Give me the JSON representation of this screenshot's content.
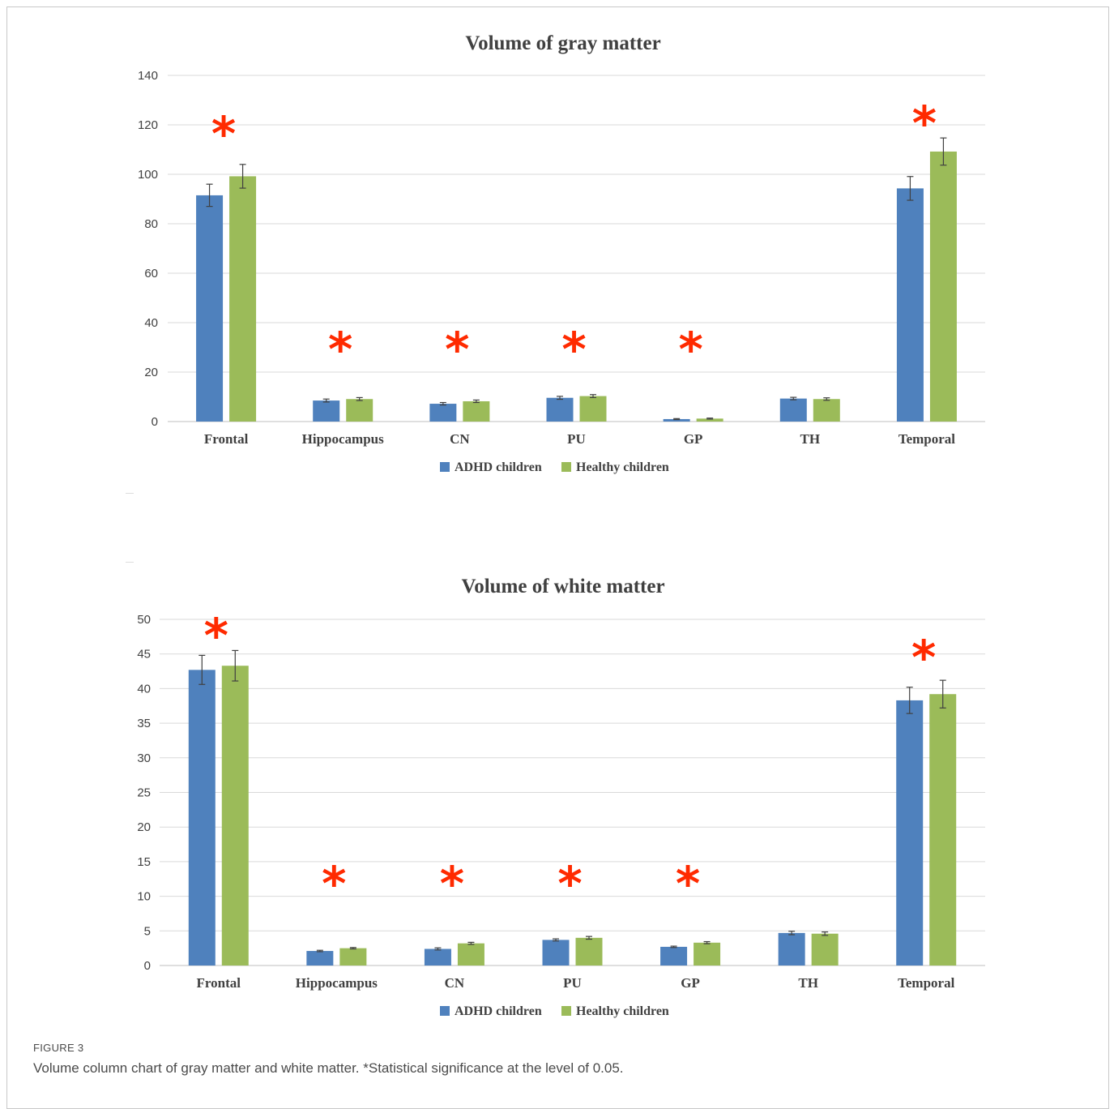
{
  "figure": {
    "label": "FIGURE 3",
    "caption": "Volume column chart of gray matter and white matter. *Statistical significance at the level of 0.05."
  },
  "colors": {
    "adhd": "#4f81bd",
    "healthy": "#9bbb59",
    "star": "#ff2a00",
    "grid": "#d9d9d9",
    "text": "#404040"
  },
  "chart_data": [
    {
      "type": "bar",
      "title": "Volume of gray matter",
      "xlabel": "",
      "ylabel": "",
      "ylim": [
        0,
        140
      ],
      "yticks": [
        0,
        20,
        40,
        60,
        80,
        100,
        120,
        140
      ],
      "categories": [
        "Frontal",
        "Hippocampus",
        "CN",
        "PU",
        "GP",
        "TH",
        "Temporal"
      ],
      "series": [
        {
          "name": "ADHD children",
          "values": [
            91.5,
            8.5,
            7.2,
            9.6,
            1.0,
            9.3,
            94.3
          ],
          "errors": [
            4.5,
            0.6,
            0.5,
            0.6,
            0.2,
            0.5,
            4.8
          ]
        },
        {
          "name": "Healthy children",
          "values": [
            99.2,
            9.1,
            8.2,
            10.3,
            1.2,
            9.1,
            109.2
          ],
          "errors": [
            4.8,
            0.6,
            0.5,
            0.6,
            0.2,
            0.5,
            5.5
          ]
        }
      ],
      "significant": [
        true,
        true,
        true,
        true,
        true,
        false,
        true
      ],
      "significance_marker": "*",
      "grid": true,
      "legend": "bottom"
    },
    {
      "type": "bar",
      "title": "Volume of white matter",
      "xlabel": "",
      "ylabel": "",
      "ylim": [
        0,
        50
      ],
      "yticks": [
        0,
        5,
        10,
        15,
        20,
        25,
        30,
        35,
        40,
        45,
        50
      ],
      "categories": [
        "Frontal",
        "Hippocampus",
        "CN",
        "PU",
        "GP",
        "TH",
        "Temporal"
      ],
      "series": [
        {
          "name": "ADHD children",
          "values": [
            42.7,
            2.1,
            2.4,
            3.7,
            2.7,
            4.7,
            38.3
          ],
          "errors": [
            2.1,
            0.1,
            0.15,
            0.15,
            0.1,
            0.25,
            1.9
          ]
        },
        {
          "name": "Healthy children",
          "values": [
            43.3,
            2.5,
            3.2,
            4.0,
            3.3,
            4.6,
            39.2
          ],
          "errors": [
            2.2,
            0.1,
            0.15,
            0.2,
            0.15,
            0.25,
            2.0
          ]
        }
      ],
      "significant": [
        true,
        true,
        true,
        true,
        true,
        false,
        true
      ],
      "significance_marker": "*",
      "grid": true,
      "legend": "bottom"
    }
  ]
}
